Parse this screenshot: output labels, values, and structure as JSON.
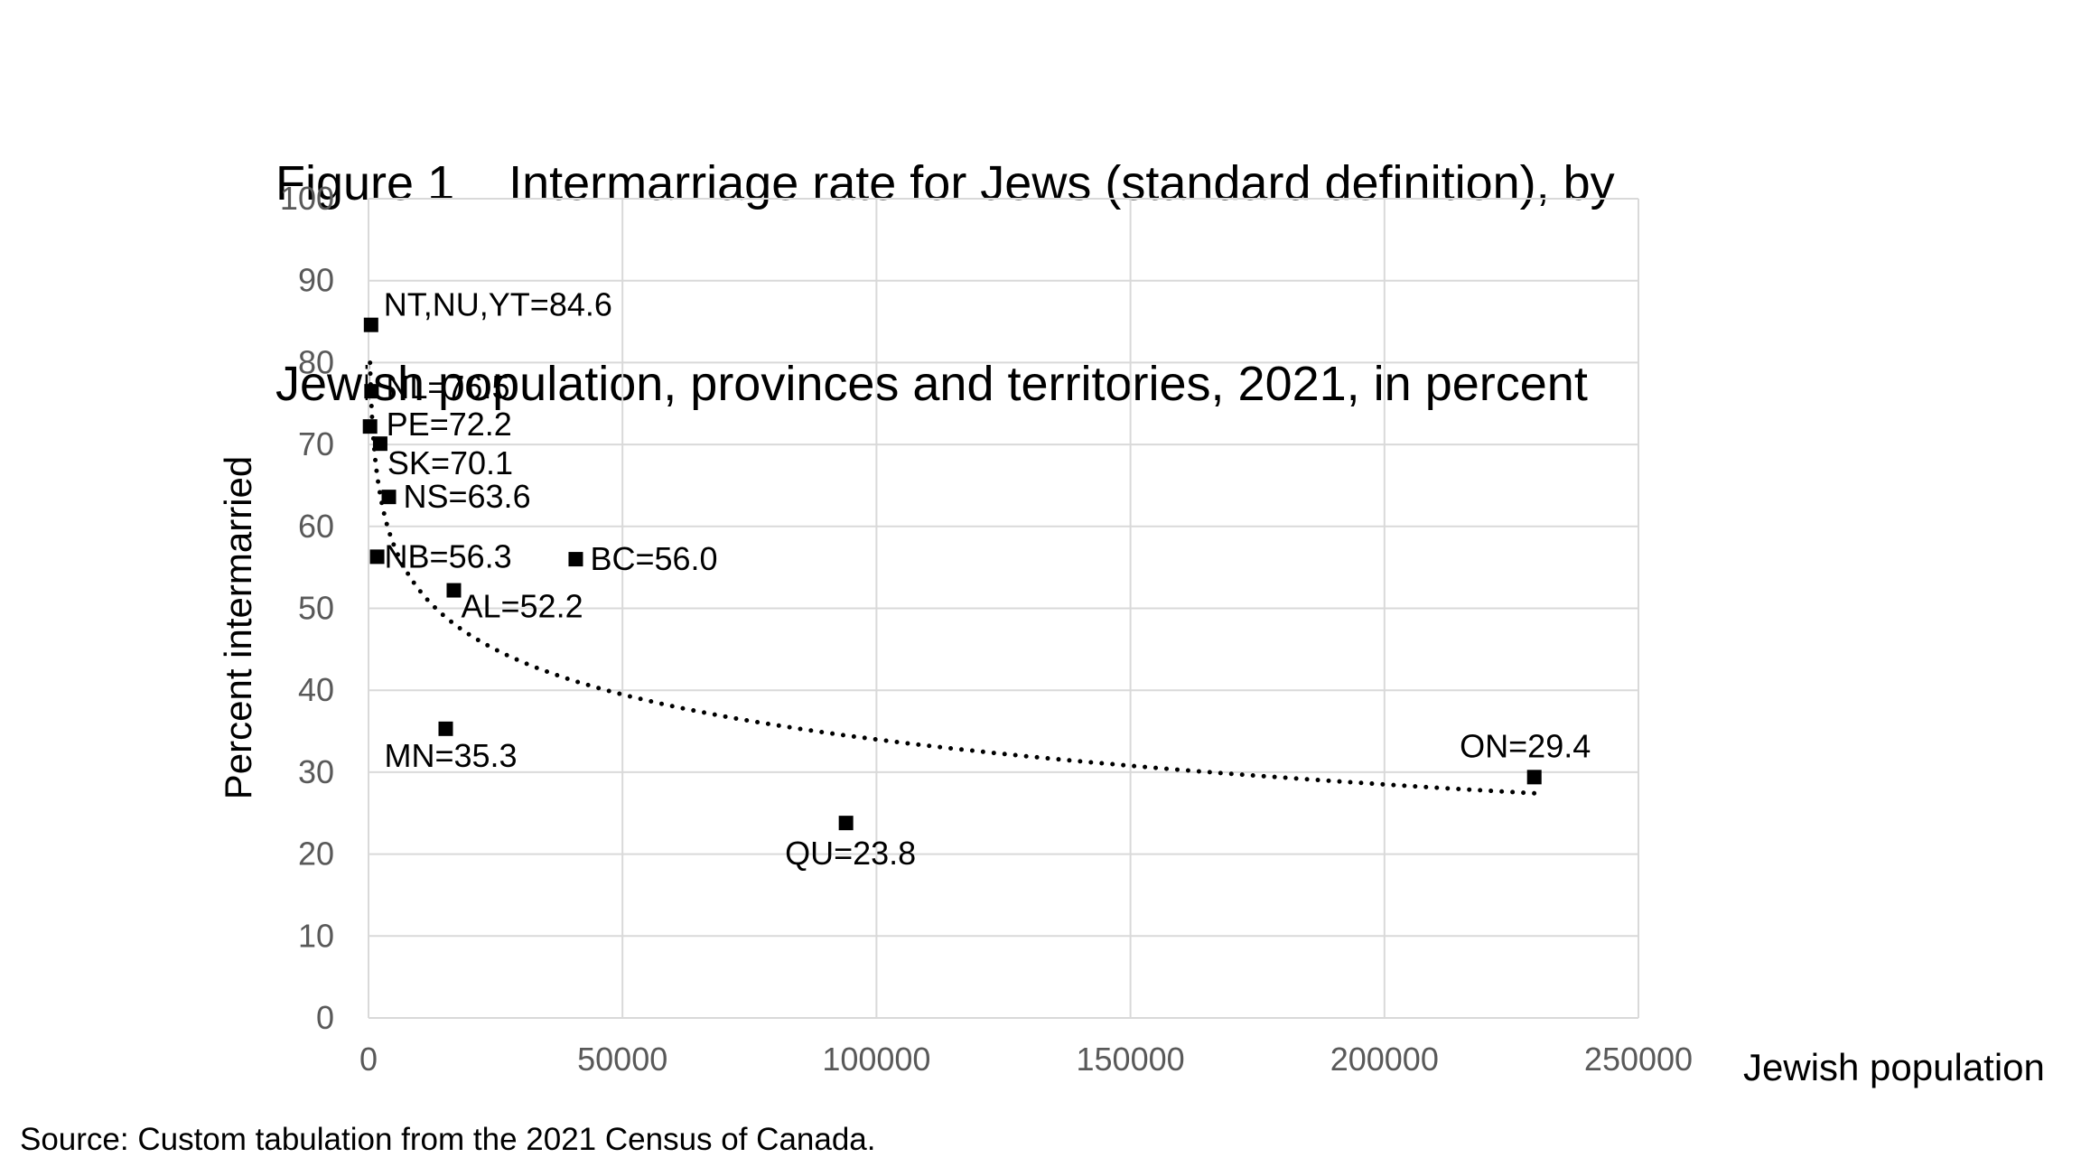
{
  "title_line1": "Figure 1    Intermarriage rate for Jews (standard definition), by",
  "title_line2": "Jewish population, provinces and territories, 2021, in percent",
  "source": "Source: Custom tabulation from the 2021 Census of Canada.",
  "chart_data": {
    "type": "scatter",
    "title": "Figure 1    Intermarriage rate for Jews (standard definition), by Jewish population, provinces and territories, 2021, in percent",
    "xlabel": "Jewish population",
    "ylabel": "Percent intermarried",
    "xlim": [
      0,
      250000
    ],
    "ylim": [
      0,
      100
    ],
    "x_ticks": [
      0,
      50000,
      100000,
      150000,
      200000,
      250000
    ],
    "y_ticks": [
      0,
      10,
      20,
      30,
      40,
      50,
      60,
      70,
      80,
      90,
      100
    ],
    "grid": true,
    "legend": "none",
    "marker_color": "#000000",
    "trendline": {
      "type": "logarithmic",
      "style": "dotted",
      "color": "#000000"
    },
    "points": [
      {
        "label": "NT,NU,YT=84.6",
        "x": 500,
        "y": 84.6
      },
      {
        "label": "NL=76.5",
        "x": 600,
        "y": 76.5
      },
      {
        "label": "PE=72.2",
        "x": 300,
        "y": 72.2
      },
      {
        "label": "SK=70.1",
        "x": 2300,
        "y": 70.1
      },
      {
        "label": "NS=63.6",
        "x": 4000,
        "y": 63.6
      },
      {
        "label": "NB=56.3",
        "x": 1700,
        "y": 56.3
      },
      {
        "label": "BC=56.0",
        "x": 40800,
        "y": 56.0
      },
      {
        "label": "AL=52.2",
        "x": 16800,
        "y": 52.2
      },
      {
        "label": "MN=35.3",
        "x": 15200,
        "y": 35.3
      },
      {
        "label": "QU=23.8",
        "x": 94000,
        "y": 23.8
      },
      {
        "label": "ON=29.4",
        "x": 229500,
        "y": 29.4
      }
    ]
  }
}
